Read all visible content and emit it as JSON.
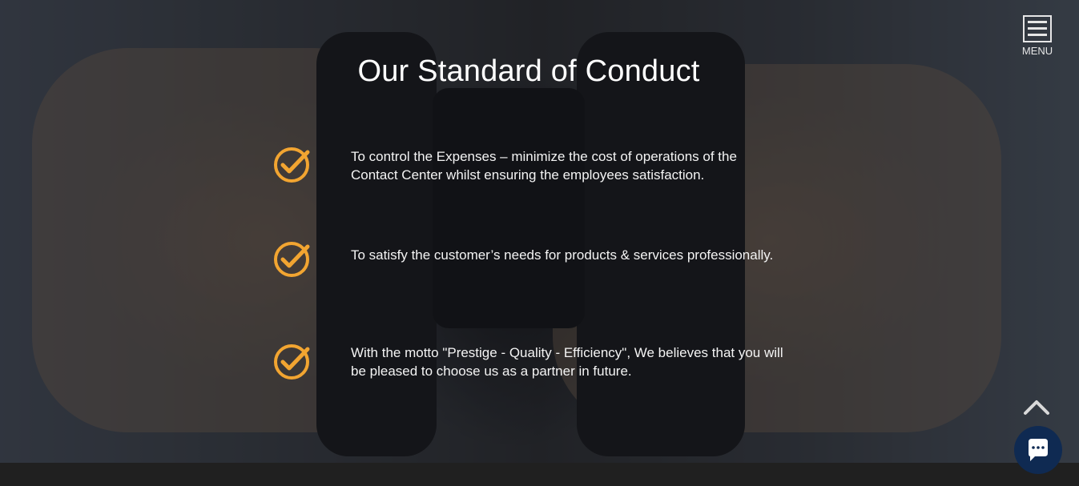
{
  "hero": {
    "title": "Our Standard of Conduct",
    "items": [
      {
        "icon": "checkmark-circle-icon",
        "text": "To control the Expenses – minimize the cost of operations of the Contact Center whilst ensuring the employees satisfaction."
      },
      {
        "icon": "checkmark-circle-icon",
        "text": "To satisfy the customer’s needs for products & services professionally."
      },
      {
        "icon": "checkmark-circle-icon",
        "text": "With the motto \"Prestige - Quality - Efficiency\", We believes that you will be pleased to choose us as a partner in future."
      }
    ]
  },
  "header": {
    "menu_label": "MENU",
    "menu_icon": "hamburger-icon"
  },
  "controls": {
    "scroll_top_icon": "chevron-up-icon",
    "chat_icon": "chat-bubble-icon"
  },
  "colors": {
    "accent": "#f2a531",
    "chat_button": "#0f2a52",
    "footer": "#202020"
  }
}
